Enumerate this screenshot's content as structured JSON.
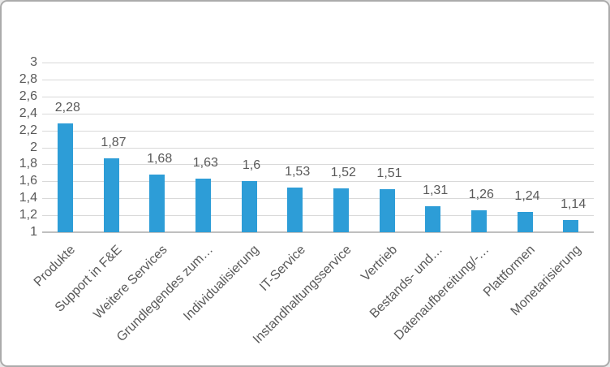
{
  "window": {
    "background": "#ffffff",
    "border_color": "#ababab"
  },
  "chart_data": {
    "type": "bar",
    "title": "",
    "xlabel": "",
    "ylabel": "",
    "categories": [
      "Produkte",
      "Support in F&E",
      "Weitere Services",
      "Grundlegendes zum…",
      "Individualisierung",
      "IT-Service",
      "Instandhaltungsservice",
      "Vertrieb",
      "Bestands- und…",
      "Datenaufbereitung/-…",
      "Plattformen",
      "Monetarisierung"
    ],
    "values": [
      2.28,
      1.87,
      1.68,
      1.63,
      1.6,
      1.53,
      1.52,
      1.51,
      1.31,
      1.26,
      1.24,
      1.14
    ],
    "value_labels": [
      "2,28",
      "1,87",
      "1,68",
      "1,63",
      "1,6",
      "1,53",
      "1,52",
      "1,51",
      "1,31",
      "1,26",
      "1,24",
      "1,14"
    ],
    "ylim": [
      1,
      3
    ],
    "ytick_interval": 0.2,
    "ytick_labels": [
      "3",
      "2,8",
      "2,6",
      "2,4",
      "2,2",
      "2",
      "1,8",
      "1,6",
      "1,4",
      "1,2",
      "1"
    ],
    "grid": true,
    "legend": false,
    "bar_color": "#2d9dd7",
    "gridline_color": "#d9d9d9",
    "baseline_color": "#bfbfbf",
    "text_color": "#595959"
  }
}
